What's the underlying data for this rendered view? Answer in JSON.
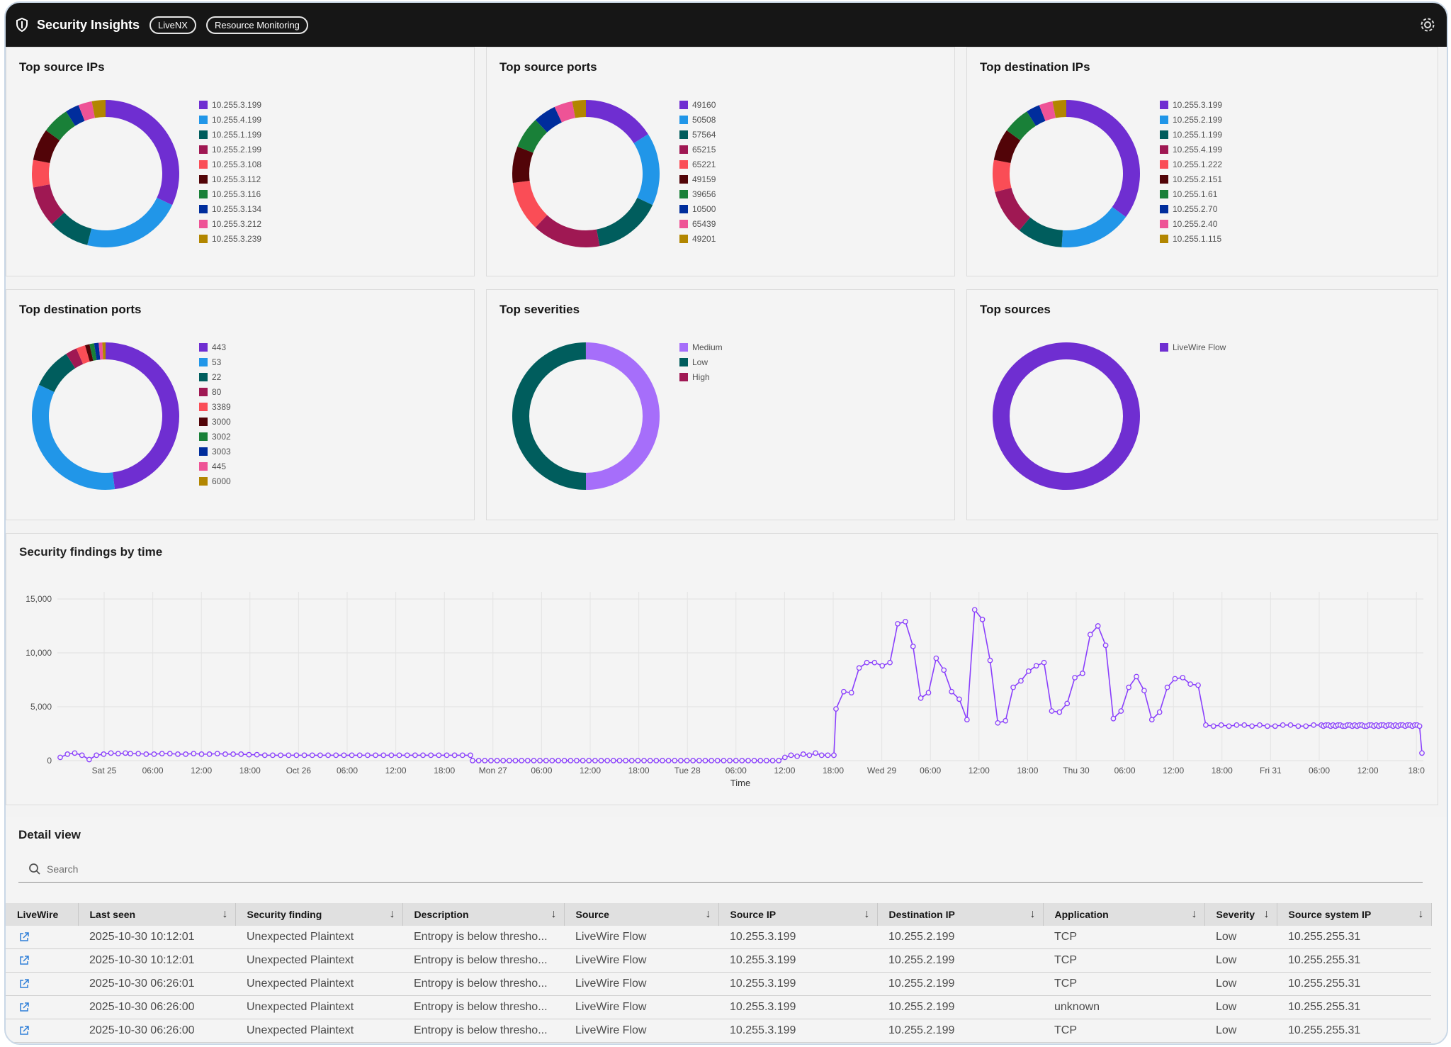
{
  "header": {
    "title": "Security Insights",
    "tags": [
      "LiveNX",
      "Resource Monitoring"
    ]
  },
  "donuts": [
    {
      "title": "Top source IPs",
      "slices": [
        {
          "label": "10.255.3.199",
          "value": 32,
          "color": "#6f2ed1"
        },
        {
          "label": "10.255.4.199",
          "value": 22,
          "color": "#2196e8"
        },
        {
          "label": "10.255.1.199",
          "value": 9,
          "color": "#005d5d"
        },
        {
          "label": "10.255.2.199",
          "value": 9,
          "color": "#9f1853"
        },
        {
          "label": "10.255.3.108",
          "value": 6,
          "color": "#fa4d56"
        },
        {
          "label": "10.255.3.112",
          "value": 7,
          "color": "#520408"
        },
        {
          "label": "10.255.3.116",
          "value": 6,
          "color": "#198038"
        },
        {
          "label": "10.255.3.134",
          "value": 3,
          "color": "#002d9c"
        },
        {
          "label": "10.255.3.212",
          "value": 3,
          "color": "#ee5396"
        },
        {
          "label": "10.255.3.239",
          "value": 3,
          "color": "#b28600"
        }
      ]
    },
    {
      "title": "Top source ports",
      "slices": [
        {
          "label": "49160",
          "value": 16,
          "color": "#6f2ed1"
        },
        {
          "label": "50508",
          "value": 16,
          "color": "#2196e8"
        },
        {
          "label": "57564",
          "value": 15,
          "color": "#005d5d"
        },
        {
          "label": "65215",
          "value": 15,
          "color": "#9f1853"
        },
        {
          "label": "65221",
          "value": 11,
          "color": "#fa4d56"
        },
        {
          "label": "49159",
          "value": 8,
          "color": "#520408"
        },
        {
          "label": "39656",
          "value": 7,
          "color": "#198038"
        },
        {
          "label": "10500",
          "value": 5,
          "color": "#002d9c"
        },
        {
          "label": "65439",
          "value": 4,
          "color": "#ee5396"
        },
        {
          "label": "49201",
          "value": 3,
          "color": "#b28600"
        }
      ]
    },
    {
      "title": "Top destination IPs",
      "slices": [
        {
          "label": "10.255.3.199",
          "value": 35,
          "color": "#6f2ed1"
        },
        {
          "label": "10.255.2.199",
          "value": 16,
          "color": "#2196e8"
        },
        {
          "label": "10.255.1.199",
          "value": 10,
          "color": "#005d5d"
        },
        {
          "label": "10.255.4.199",
          "value": 10,
          "color": "#9f1853"
        },
        {
          "label": "10.255.1.222",
          "value": 7,
          "color": "#fa4d56"
        },
        {
          "label": "10.255.2.151",
          "value": 7,
          "color": "#520408"
        },
        {
          "label": "10.255.1.61",
          "value": 6,
          "color": "#198038"
        },
        {
          "label": "10.255.2.70",
          "value": 3,
          "color": "#002d9c"
        },
        {
          "label": "10.255.2.40",
          "value": 3,
          "color": "#ee5396"
        },
        {
          "label": "10.255.1.115",
          "value": 3,
          "color": "#b28600"
        }
      ]
    },
    {
      "title": "Top destination ports",
      "slices": [
        {
          "label": "443",
          "value": 48,
          "color": "#6f2ed1"
        },
        {
          "label": "53",
          "value": 34,
          "color": "#2196e8"
        },
        {
          "label": "22",
          "value": 9,
          "color": "#005d5d"
        },
        {
          "label": "80",
          "value": 2.5,
          "color": "#9f1853"
        },
        {
          "label": "3389",
          "value": 2,
          "color": "#fa4d56"
        },
        {
          "label": "3000",
          "value": 1,
          "color": "#520408"
        },
        {
          "label": "3002",
          "value": 1,
          "color": "#198038"
        },
        {
          "label": "3003",
          "value": 1,
          "color": "#002d9c"
        },
        {
          "label": "445",
          "value": 0.8,
          "color": "#ee5396"
        },
        {
          "label": "6000",
          "value": 0.7,
          "color": "#b28600"
        }
      ]
    },
    {
      "title": "Top severities",
      "slices": [
        {
          "label": "Medium",
          "value": 50,
          "color": "#a66efa"
        },
        {
          "label": "Low",
          "value": 50,
          "color": "#005d5d"
        },
        {
          "label": "High",
          "value": 0.01,
          "color": "#9f1853"
        }
      ]
    },
    {
      "title": "Top sources",
      "slices": [
        {
          "label": "LiveWire Flow",
          "value": 100,
          "color": "#6f2ed1"
        }
      ]
    }
  ],
  "timechart": {
    "title": "Security findings by time",
    "chart_data": {
      "type": "line",
      "xlabel": "Time",
      "ylabel": "",
      "ylim": [
        0,
        15000
      ],
      "yticks": [
        "0",
        "5,000",
        "10,000",
        "15,000"
      ],
      "xticks": [
        "Sat 25",
        "06:00",
        "12:00",
        "18:00",
        "Oct 26",
        "06:00",
        "12:00",
        "18:00",
        "Mon 27",
        "06:00",
        "12:00",
        "18:00",
        "Tue 28",
        "06:00",
        "12:00",
        "18:00",
        "Wed 29",
        "06:00",
        "12:00",
        "18:00",
        "Thu 30",
        "06:00",
        "12:00",
        "18:00",
        "Fri 31",
        "06:00",
        "12:00",
        "18:0"
      ],
      "color": "#8a3ffc",
      "segments": [
        {
          "n": 10,
          "values": [
            300,
            600,
            700,
            500,
            100,
            500,
            600,
            700,
            650,
            700
          ]
        },
        {
          "n": 44,
          "values": [
            650,
            650,
            600,
            600,
            650,
            650,
            600,
            600,
            650,
            600,
            600,
            650,
            600,
            600,
            600,
            550,
            550,
            500,
            500,
            500,
            500,
            500,
            500,
            500,
            500,
            500,
            500,
            500,
            500,
            500,
            500,
            500,
            500,
            500,
            500,
            500,
            500,
            500,
            500,
            500,
            500,
            500,
            500,
            500
          ]
        },
        {
          "n": 60,
          "values": [
            0,
            0,
            0,
            0,
            0,
            0,
            0,
            0,
            0,
            0,
            0,
            0,
            0,
            0,
            0,
            0,
            0,
            0,
            0,
            0,
            0,
            0,
            0,
            0,
            0,
            0,
            0,
            0,
            0,
            0,
            0,
            0,
            0,
            0,
            0,
            0,
            0,
            0,
            0,
            0,
            0,
            0,
            0,
            0,
            0,
            0,
            0,
            0,
            0,
            0,
            0,
            300,
            500,
            400,
            600,
            500,
            700,
            500,
            500,
            500
          ]
        },
        {
          "n": 64,
          "values": [
            4800,
            6400,
            6300,
            8600,
            9100,
            9100,
            8800,
            9100,
            12700,
            12900,
            10600,
            5800,
            6300,
            9500,
            8400,
            6400,
            5700,
            3800,
            14000,
            13100,
            9300,
            3500,
            3700,
            6800,
            7400,
            8300,
            8800,
            9100,
            4600,
            4500,
            5300,
            7700,
            8100,
            11700,
            12500,
            10700,
            3900,
            4600,
            6800,
            7800,
            6500,
            3800,
            4500,
            6800,
            7600,
            7700,
            7100,
            7000,
            3300,
            3200,
            3300,
            3200,
            3300,
            3300,
            3200,
            3300,
            3200,
            3200,
            3300,
            3300,
            3200,
            3200,
            3300,
            3300
          ]
        },
        {
          "n": 42,
          "values": [
            3200,
            3300,
            3300,
            3200,
            3300,
            3200,
            3300,
            3300,
            3200,
            3200,
            3300,
            3300,
            3200,
            3300,
            3200,
            3300,
            3300,
            3200,
            3200,
            3300,
            3300,
            3200,
            3300,
            3200,
            3300,
            3300,
            3200,
            3300,
            3300,
            3200,
            3300,
            3200,
            3300,
            3300,
            3200,
            3300,
            3300,
            3200,
            3300,
            3300,
            3200,
            700
          ]
        }
      ]
    }
  },
  "detail": {
    "title": "Detail view",
    "search_placeholder": "Search",
    "columns": [
      "LiveWire",
      "Last seen",
      "Security finding",
      "Description",
      "Source",
      "Source IP",
      "Destination IP",
      "Application",
      "Severity",
      "Source system IP"
    ],
    "rows": [
      [
        "",
        "2025-10-30 10:12:01",
        "Unexpected Plaintext",
        "Entropy is below thresho...",
        "LiveWire Flow",
        "10.255.3.199",
        "10.255.2.199",
        "TCP",
        "Low",
        "10.255.255.31"
      ],
      [
        "",
        "2025-10-30 10:12:01",
        "Unexpected Plaintext",
        "Entropy is below thresho...",
        "LiveWire Flow",
        "10.255.3.199",
        "10.255.2.199",
        "TCP",
        "Low",
        "10.255.255.31"
      ],
      [
        "",
        "2025-10-30 06:26:01",
        "Unexpected Plaintext",
        "Entropy is below thresho...",
        "LiveWire Flow",
        "10.255.3.199",
        "10.255.2.199",
        "TCP",
        "Low",
        "10.255.255.31"
      ],
      [
        "",
        "2025-10-30 06:26:00",
        "Unexpected Plaintext",
        "Entropy is below thresho...",
        "LiveWire Flow",
        "10.255.3.199",
        "10.255.2.199",
        "unknown",
        "Low",
        "10.255.255.31"
      ],
      [
        "",
        "2025-10-30 06:26:00",
        "Unexpected Plaintext",
        "Entropy is below thresho...",
        "LiveWire Flow",
        "10.255.3.199",
        "10.255.2.199",
        "TCP",
        "Low",
        "10.255.255.31"
      ]
    ]
  }
}
